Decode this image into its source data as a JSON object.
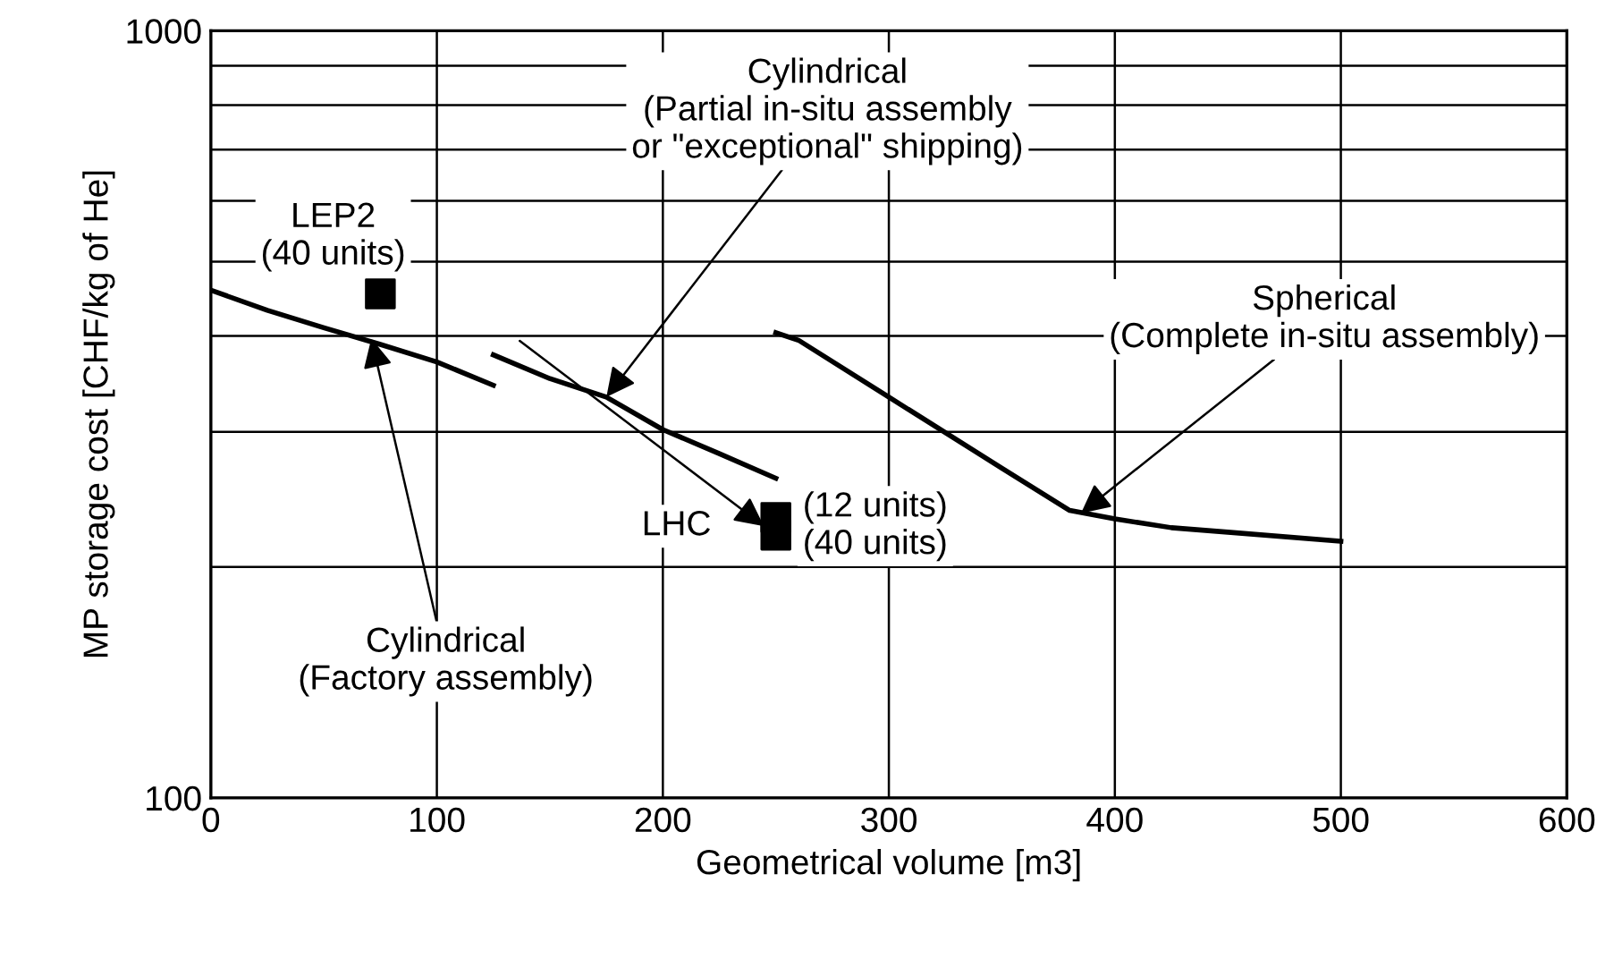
{
  "chart_data": {
    "type": "line",
    "xlabel": "Geometrical volume [m3]",
    "ylabel": "MP storage cost [CHF/kg of He]",
    "log": "y",
    "xlim": [
      0,
      600
    ],
    "ylim": [
      100,
      1000
    ],
    "xticks": [
      0,
      100,
      200,
      300,
      400,
      500,
      600
    ],
    "yticks": [
      100,
      {
        "value": 200,
        "label": null
      },
      {
        "value": 300,
        "label": null
      },
      {
        "value": 400,
        "label": null
      },
      {
        "value": 500,
        "label": null
      },
      {
        "value": 600,
        "label": null
      },
      {
        "value": 700,
        "label": null
      },
      {
        "value": 800,
        "label": null
      },
      {
        "value": 900,
        "label": null
      },
      1000
    ],
    "grid": true,
    "series": [
      {
        "color": "#000000",
        "x": [
          0,
          25,
          50,
          75,
          100,
          125
        ],
        "values": [
          459,
          432,
          410,
          390,
          370,
          345
        ]
      },
      {
        "color": "#000000",
        "x": [
          125,
          150,
          175,
          200,
          225,
          250
        ],
        "values": [
          378,
          352,
          333,
          302,
          281,
          261
        ]
      },
      {
        "color": "#000000",
        "x": [
          250,
          260,
          300,
          350,
          380,
          400,
          425,
          450,
          500
        ],
        "values": [
          404,
          395,
          333,
          269,
          237,
          231,
          225,
          222,
          216
        ]
      },
      {
        "type": "scatter",
        "color": "#000000",
        "marker": "square",
        "x": [
          75,
          250,
          250
        ],
        "values": [
          454,
          232,
          220
        ]
      }
    ],
    "annotations": [
      {
        "text": "LEP2\n(40 units)",
        "x": 75,
        "y": 454
      },
      {
        "text": "Cylindrical\n(Partial in-situ assembly\nor \"exceptional\" shipping)",
        "x": 175,
        "y": 333
      },
      {
        "text": "Spherical\n(Complete in-situ assembly)",
        "x": 385,
        "y": 235
      },
      {
        "text": "Cylindrical\n(Factory assembly)",
        "x": 71,
        "y": 397
      },
      {
        "text": "LHC",
        "x": 250,
        "y": 226
      },
      {
        "text": "(12 units)\n(40 units)",
        "x": 250,
        "y": 226
      }
    ]
  }
}
